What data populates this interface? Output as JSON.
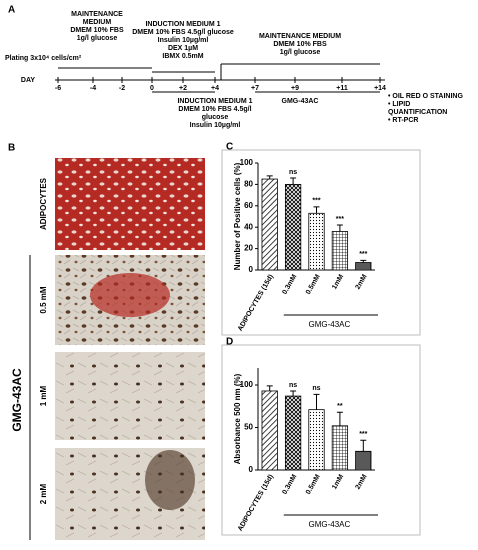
{
  "figure": {
    "panel_a": {
      "label": "A",
      "day_label": "DAY",
      "plating": "Plating 3x10⁴ cells/cm²",
      "days": [
        "-6",
        "-4",
        "-2",
        "0",
        "+2",
        "+4",
        "+7",
        "+9",
        "+11",
        "+14"
      ],
      "maintenance_1": [
        "MAINTENANCE",
        "MEDIUM",
        "DMEM 10% FBS",
        "1g/l glucose"
      ],
      "induction_1": [
        "INDUCTION MEDIUM 1",
        "DMEM 10% FBS 4.5g/l glucose",
        "Insulin 10µg/ml",
        "DEX 1µM",
        "IBMX 0.5mM"
      ],
      "maintenance_2": [
        "MAINTENANCE MEDIUM",
        "DMEM 10% FBS",
        "1g/l glucose"
      ],
      "induction_2": [
        "INDUCTION MEDIUM 1",
        "DMEM 10% FBS 4.5g/l",
        "glucose",
        "Insulin 10µg/ml"
      ],
      "treatment": "GMG-43AC",
      "endpoints": [
        "• OIL RED O STAINING",
        "• LIPID",
        "QUANTIFICATION",
        "• RT-PCR"
      ]
    },
    "panel_b": {
      "label": "B",
      "rows": [
        "ADIPOCYTES",
        "0.5 mM",
        "1 mM",
        "2 mM"
      ],
      "group": "GMG-43AC"
    }
  },
  "chart_data": [
    {
      "type": "bar",
      "label": "C",
      "ylabel": "Number of Positive cells (%)",
      "categories": [
        "ADIPOCYTES (15d)",
        "0.3mM",
        "0.5mM",
        "1mM",
        "2mM"
      ],
      "values": [
        85,
        80,
        53,
        36,
        7
      ],
      "errors": [
        3,
        6,
        6,
        6,
        2
      ],
      "annotations": [
        null,
        "ns",
        "***",
        "***",
        "***"
      ],
      "group_label": "GMG-43AC",
      "ylim": [
        0,
        100
      ],
      "yticks": [
        0,
        20,
        40,
        60,
        80,
        100
      ],
      "color": "#000000"
    },
    {
      "type": "bar",
      "label": "D",
      "ylabel": "Absorbance 500 nm (%)",
      "categories": [
        "ADIPOCYTES (15d)",
        "0.3mM",
        "0.5mM",
        "1mM",
        "2mM"
      ],
      "values": [
        93,
        87,
        71,
        52,
        22
      ],
      "errors": [
        6,
        6,
        18,
        16,
        13
      ],
      "annotations": [
        null,
        "ns",
        "ns",
        "**",
        "***"
      ],
      "group_label": "GMG-43AC",
      "ylim": [
        0,
        120
      ],
      "yticks": [
        0,
        50,
        100
      ],
      "color": "#000000"
    }
  ]
}
